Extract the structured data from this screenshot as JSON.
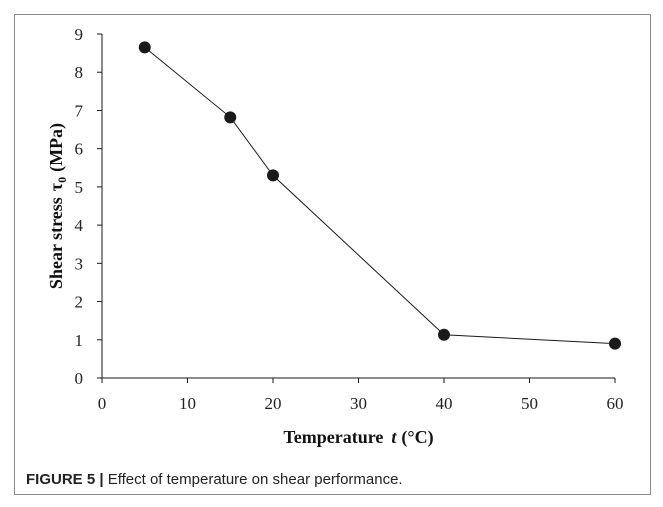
{
  "caption": {
    "figure_label": "FIGURE 5 |",
    "text": "Effect of temperature on shear performance."
  },
  "chart_data": {
    "type": "line",
    "x_values": [
      5,
      15,
      20,
      40,
      60
    ],
    "series": [
      {
        "values": [
          8.65,
          6.82,
          5.3,
          1.13,
          0.9
        ]
      }
    ],
    "xlabel_main": "Temperature",
    "xlabel_var": "t",
    "xlabel_unit": "(°C)",
    "ylabel_main": "Shear stress",
    "ylabel_var": "τ",
    "ylabel_sub": "0",
    "ylabel_unit": "(MPa)",
    "xlim": [
      0,
      60
    ],
    "ylim": [
      0,
      9
    ],
    "x_ticks": [
      "0",
      "10",
      "20",
      "30",
      "40",
      "50",
      "60"
    ],
    "y_ticks": [
      "0",
      "1",
      "2",
      "3",
      "4",
      "5",
      "6",
      "7",
      "8",
      "9"
    ],
    "grid": false,
    "colors": {
      "line": "#1a1a1a",
      "marker": "#1a1a1a",
      "axis": "#1a1a1a"
    }
  }
}
